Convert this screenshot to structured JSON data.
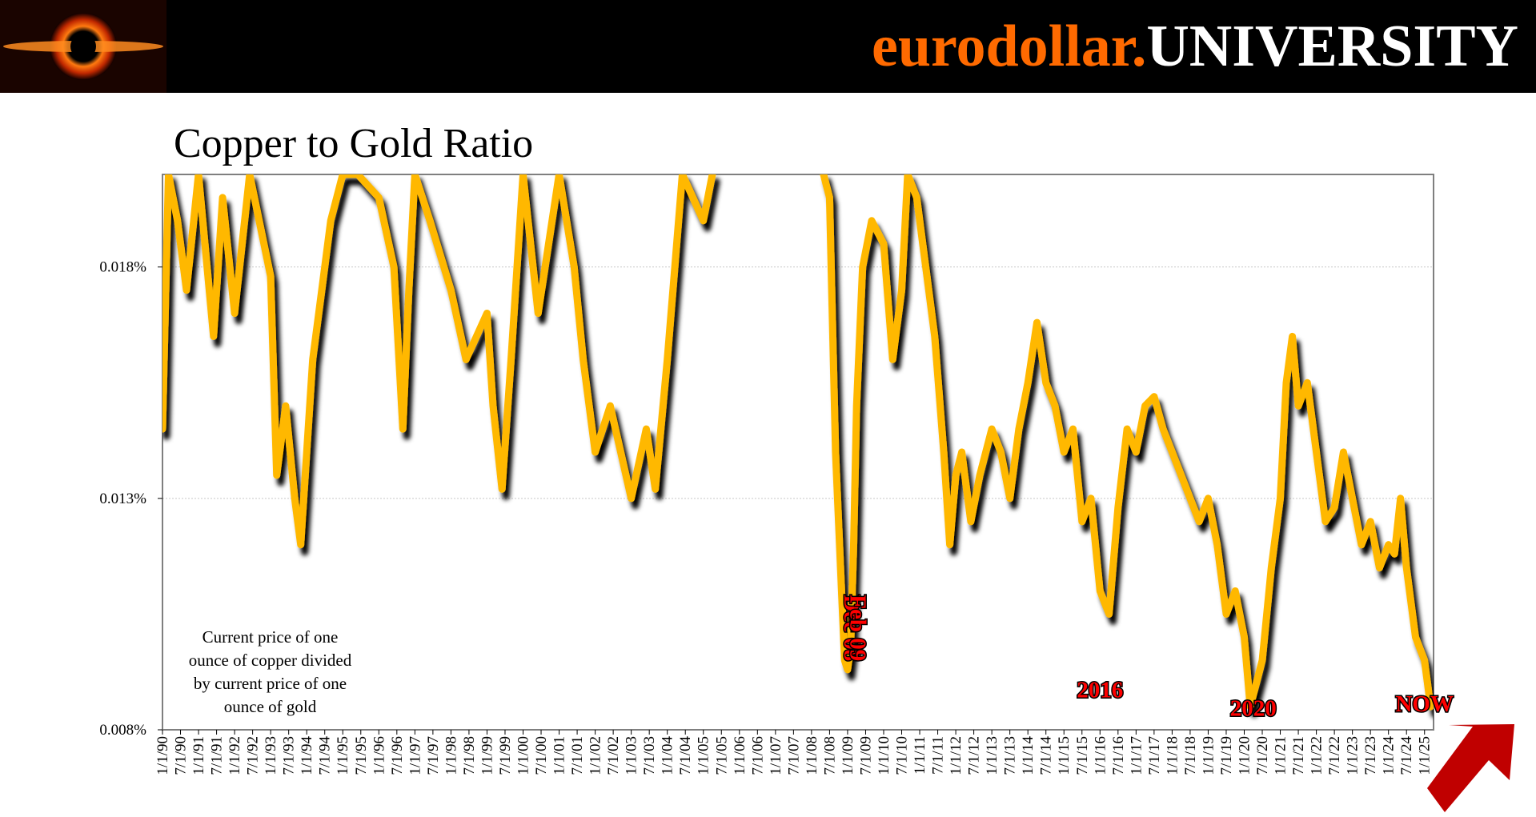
{
  "header": {
    "brand_part1": "eurodollar.",
    "brand_part2": "UNIVERSITY",
    "logo_icon": "black-hole-icon"
  },
  "colors": {
    "series": "#ffb800",
    "annotation": "#ff0000",
    "brand_orange": "#ff6a00",
    "arrow": "#c00000"
  },
  "chart_data": {
    "type": "line",
    "title": "Copper to Gold Ratio",
    "xlabel": "",
    "ylabel": "",
    "yunit": "%",
    "ylim": [
      0.008,
      0.02
    ],
    "yticks": [
      "0.008%",
      "0.013%",
      "0.018%"
    ],
    "ytick_values": [
      0.008,
      0.013,
      0.018
    ],
    "grid": true,
    "xlim": [
      "1/1/90",
      "1/1/25"
    ],
    "xticks": [
      "1/1/90",
      "7/1/90",
      "1/1/91",
      "7/1/91",
      "1/1/92",
      "7/1/92",
      "1/1/93",
      "7/1/93",
      "1/1/94",
      "7/1/94",
      "1/1/95",
      "7/1/95",
      "1/1/96",
      "7/1/96",
      "1/1/97",
      "7/1/97",
      "1/1/98",
      "7/1/98",
      "1/1/99",
      "7/1/99",
      "1/1/00",
      "7/1/00",
      "1/1/01",
      "7/1/01",
      "1/1/02",
      "7/1/02",
      "1/1/03",
      "7/1/03",
      "1/1/04",
      "7/1/04",
      "1/1/05",
      "7/1/05",
      "1/1/06",
      "7/1/06",
      "1/1/07",
      "7/1/07",
      "1/1/08",
      "7/1/08",
      "1/1/09",
      "7/1/09",
      "1/1/10",
      "7/1/10",
      "1/1/11",
      "7/1/11",
      "1/1/12",
      "7/1/12",
      "1/1/13",
      "7/1/13",
      "1/1/14",
      "7/1/14",
      "1/1/15",
      "7/1/15",
      "1/1/16",
      "7/1/16",
      "1/1/17",
      "7/1/17",
      "1/1/18",
      "7/1/18",
      "1/1/19",
      "7/1/19",
      "1/1/20",
      "7/1/20",
      "1/1/21",
      "7/1/21",
      "1/1/22",
      "7/1/22",
      "1/1/23",
      "7/1/23",
      "1/1/24",
      "7/1/24",
      "1/1/25"
    ],
    "series": [
      {
        "segments": [
          {
            "x": [
              "1/1/90",
              "3/1/90",
              "6/1/90",
              "9/1/90",
              "1/1/91",
              "6/1/91",
              "9/1/91",
              "1/1/92",
              "6/1/92",
              "1/1/93",
              "3/1/93",
              "6/1/93",
              "9/1/93",
              "11/1/93",
              "1/1/94",
              "3/1/94",
              "6/1/94",
              "9/1/94",
              "1/1/95",
              "6/1/95",
              "1/1/96",
              "6/1/96",
              "9/1/96",
              "11/1/96",
              "1/1/97",
              "6/1/97",
              "1/1/98",
              "6/1/98",
              "1/1/99",
              "3/1/99",
              "6/1/99",
              "9/1/99",
              "1/1/00",
              "6/1/00",
              "1/1/01",
              "6/1/01",
              "9/1/01",
              "1/1/02",
              "6/1/02",
              "1/1/03",
              "6/1/03",
              "9/1/03",
              "1/1/04",
              "6/1/04",
              "1/1/05",
              "4/1/05"
            ],
            "y": [
              0.0145,
              0.02,
              0.019,
              0.0175,
              0.02,
              0.0165,
              0.0195,
              0.017,
              0.02,
              0.0178,
              0.0135,
              0.015,
              0.013,
              0.012,
              0.014,
              0.016,
              0.0175,
              0.019,
              0.02,
              0.02,
              0.0195,
              0.018,
              0.0145,
              0.0175,
              0.02,
              0.019,
              0.0175,
              0.016,
              0.017,
              0.015,
              0.0132,
              0.016,
              0.02,
              0.017,
              0.02,
              0.018,
              0.016,
              0.014,
              0.015,
              0.013,
              0.0145,
              0.0132,
              0.016,
              0.02,
              0.019,
              0.02
            ]
          },
          {
            "x": [
              "5/1/08",
              "7/1/08",
              "9/1/08",
              "11/1/08",
              "12/1/08",
              "1/1/09",
              "2/1/09",
              "3/1/09",
              "4/1/09",
              "6/1/09",
              "9/1/09",
              "1/1/10",
              "4/1/10",
              "7/1/10",
              "9/1/10",
              "12/1/10",
              "3/1/11",
              "6/1/11",
              "9/1/11",
              "11/1/11",
              "1/1/12",
              "3/1/12",
              "6/1/12",
              "9/1/12",
              "1/1/13",
              "4/1/13",
              "7/1/13",
              "10/1/13",
              "1/1/14",
              "4/1/14",
              "7/1/14",
              "10/1/14",
              "1/1/15",
              "4/1/15",
              "7/1/15",
              "10/1/15",
              "1/1/16",
              "4/1/16",
              "7/1/16",
              "10/1/16",
              "1/1/17",
              "4/1/17",
              "7/1/17",
              "10/1/17",
              "1/1/18",
              "4/1/18",
              "7/1/18",
              "10/1/18",
              "1/1/19",
              "4/1/19",
              "7/1/19",
              "10/1/19",
              "1/1/20",
              "3/1/20",
              "5/1/20",
              "7/1/20",
              "10/1/20",
              "1/1/21",
              "3/1/21",
              "5/1/21",
              "7/1/21",
              "10/1/21",
              "1/1/22",
              "4/1/22",
              "7/1/22",
              "10/1/22",
              "1/1/23",
              "4/1/23",
              "7/1/23",
              "10/1/23",
              "1/1/24",
              "3/1/24",
              "5/1/24",
              "7/1/24",
              "10/1/24",
              "1/1/25",
              "2/1/25",
              "3/1/25"
            ],
            "y": [
              0.02,
              0.0195,
              0.014,
              0.011,
              0.0095,
              0.0093,
              0.0098,
              0.012,
              0.015,
              0.018,
              0.019,
              0.0185,
              0.016,
              0.0175,
              0.02,
              0.0195,
              0.018,
              0.0165,
              0.014,
              0.012,
              0.0135,
              0.014,
              0.0125,
              0.0135,
              0.0145,
              0.014,
              0.013,
              0.0145,
              0.0155,
              0.0168,
              0.0155,
              0.015,
              0.014,
              0.0145,
              0.0125,
              0.013,
              0.011,
              0.0105,
              0.0128,
              0.0145,
              0.014,
              0.015,
              0.0152,
              0.0145,
              0.014,
              0.0135,
              0.013,
              0.0125,
              0.013,
              0.012,
              0.0105,
              0.011,
              0.01,
              0.0085,
              0.009,
              0.0095,
              0.0115,
              0.013,
              0.0155,
              0.0165,
              0.015,
              0.0155,
              0.014,
              0.0125,
              0.0128,
              0.014,
              0.013,
              0.012,
              0.0125,
              0.0115,
              0.012,
              0.0118,
              0.013,
              0.0115,
              0.01,
              0.0095,
              0.009,
              0.0085
            ]
          }
        ]
      }
    ],
    "annotations": [
      {
        "text": "Dec 08",
        "x": "12/1/08",
        "orientation": "vertical"
      },
      {
        "text": "Feb 09",
        "x": "2/1/09",
        "orientation": "vertical"
      },
      {
        "text": "2016",
        "x": "1/1/16"
      },
      {
        "text": "2020",
        "x": "4/1/20"
      },
      {
        "text": "NOW",
        "x": "1/1/25"
      }
    ],
    "note_lines": [
      "Current price of one",
      "ounce of copper divided",
      "by current price of one",
      "ounce of gold"
    ],
    "arrow_icon": "arrow-up-left-icon"
  }
}
